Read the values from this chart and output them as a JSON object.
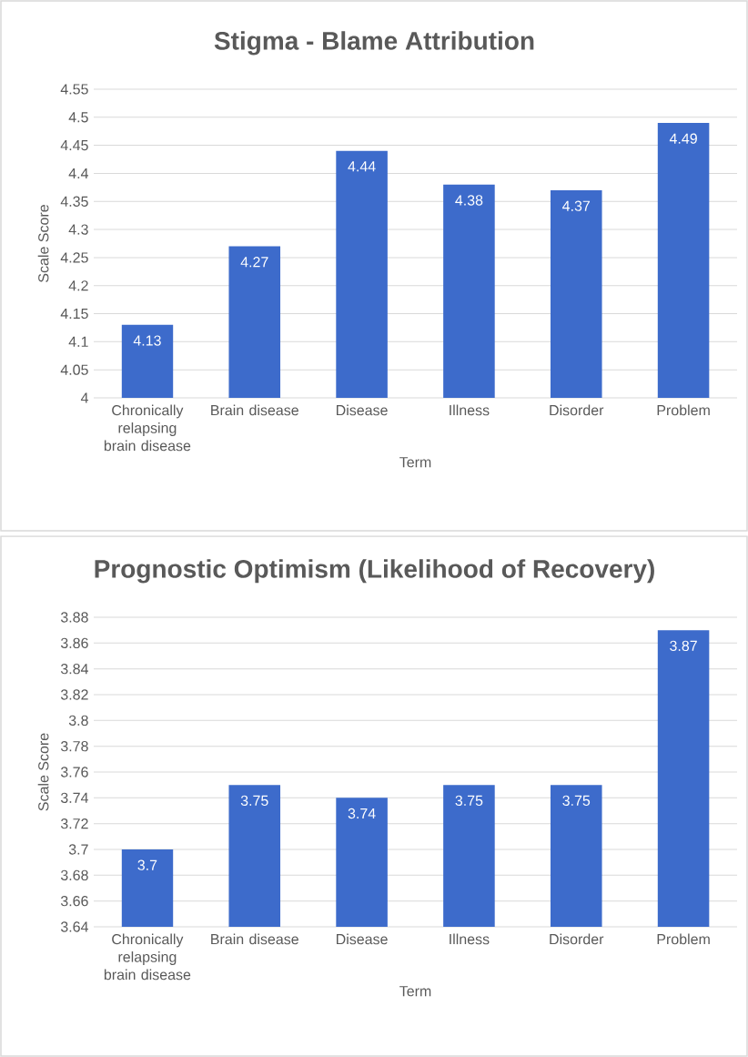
{
  "chart_data": [
    {
      "type": "bar",
      "title": "Stigma - Blame Attribution",
      "xlabel": "Term",
      "ylabel": "Scale Score",
      "categories": [
        "Chronically relapsing brain disease",
        "Brain disease",
        "Disease",
        "Illness",
        "Disorder",
        "Problem"
      ],
      "values": [
        4.13,
        4.27,
        4.44,
        4.38,
        4.37,
        4.49
      ],
      "color": "#3d6bcb",
      "ylim": [
        4,
        4.55
      ],
      "yticks": [
        4,
        4.05,
        4.1,
        4.15,
        4.2,
        4.25,
        4.3,
        4.35,
        4.4,
        4.45,
        4.5,
        4.55
      ],
      "grid": "y",
      "data_labels": true
    },
    {
      "type": "bar",
      "title": "Prognostic Optimism (Likelihood of Recovery)",
      "xlabel": "Term",
      "ylabel": "Scale Score",
      "categories": [
        "Chronically relapsing brain disease",
        "Brain disease",
        "Disease",
        "Illness",
        "Disorder",
        "Problem"
      ],
      "values": [
        3.7,
        3.75,
        3.74,
        3.75,
        3.75,
        3.87
      ],
      "color": "#3d6bcb",
      "ylim": [
        3.64,
        3.88
      ],
      "yticks": [
        3.64,
        3.66,
        3.68,
        3.7,
        3.72,
        3.74,
        3.76,
        3.78,
        3.8,
        3.82,
        3.84,
        3.86,
        3.88
      ],
      "grid": "y",
      "data_labels": true
    }
  ]
}
